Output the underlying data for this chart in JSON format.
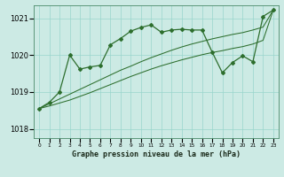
{
  "title": "Graphe pression niveau de la mer (hPa)",
  "bg_color": "#cceae4",
  "grid_color": "#99d5cc",
  "line_color": "#2d6e2d",
  "x_labels": [
    "0",
    "1",
    "2",
    "3",
    "4",
    "5",
    "6",
    "7",
    "8",
    "9",
    "10",
    "11",
    "12",
    "13",
    "14",
    "15",
    "16",
    "17",
    "18",
    "19",
    "20",
    "21",
    "22",
    "23"
  ],
  "ylim": [
    1017.75,
    1021.35
  ],
  "yticks": [
    1018,
    1019,
    1020,
    1021
  ],
  "main_series": [
    1018.55,
    1018.72,
    1019.0,
    1020.0,
    1019.62,
    1019.68,
    1019.72,
    1020.28,
    1020.45,
    1020.65,
    1020.75,
    1020.82,
    1020.62,
    1020.68,
    1020.7,
    1020.68,
    1020.68,
    1020.08,
    1019.52,
    1019.8,
    1019.98,
    1019.82,
    1021.05,
    1021.22
  ],
  "trend1": [
    1018.55,
    1018.68,
    1018.81,
    1018.94,
    1019.07,
    1019.2,
    1019.33,
    1019.46,
    1019.59,
    1019.7,
    1019.82,
    1019.93,
    1020.03,
    1020.13,
    1020.22,
    1020.3,
    1020.37,
    1020.44,
    1020.5,
    1020.56,
    1020.61,
    1020.68,
    1020.76,
    1021.22
  ],
  "trend2": [
    1018.55,
    1018.62,
    1018.7,
    1018.78,
    1018.88,
    1018.98,
    1019.09,
    1019.2,
    1019.31,
    1019.42,
    1019.52,
    1019.62,
    1019.71,
    1019.79,
    1019.87,
    1019.94,
    1020.01,
    1020.07,
    1020.12,
    1020.18,
    1020.23,
    1020.3,
    1020.4,
    1021.22
  ],
  "ytick_fontsize": 6,
  "xtick_fontsize": 4.2,
  "xlabel_fontsize": 6,
  "lw_main": 0.9,
  "lw_trend": 0.75,
  "marker_size": 2.0
}
